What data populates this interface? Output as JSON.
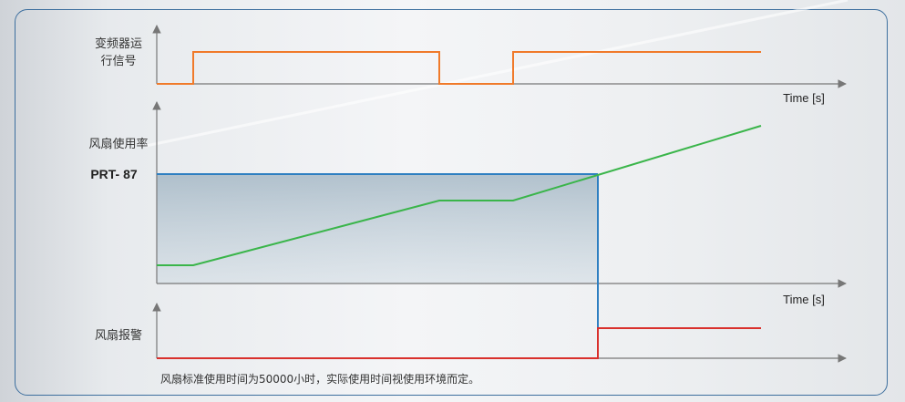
{
  "labels": {
    "inverter_run_signal_line1": "变频器运",
    "inverter_run_signal_line2": "行信号",
    "fan_usage_rate": "风扇使用率",
    "threshold": "PRT- 87",
    "fan_alarm": "风扇报警",
    "time_axis_1": "Time [s]",
    "time_axis_2": "Time [s]",
    "footnote": "风扇标准使用时间为50000小时，实际使用时间视使用环境而定。"
  },
  "colors": {
    "run_signal": "#f07a2a",
    "usage_rate": "#3ab54a",
    "threshold": "#2e7fc1",
    "alarm": "#d9302c",
    "axis": "#777777",
    "frame": "#3d6f9e"
  }
}
